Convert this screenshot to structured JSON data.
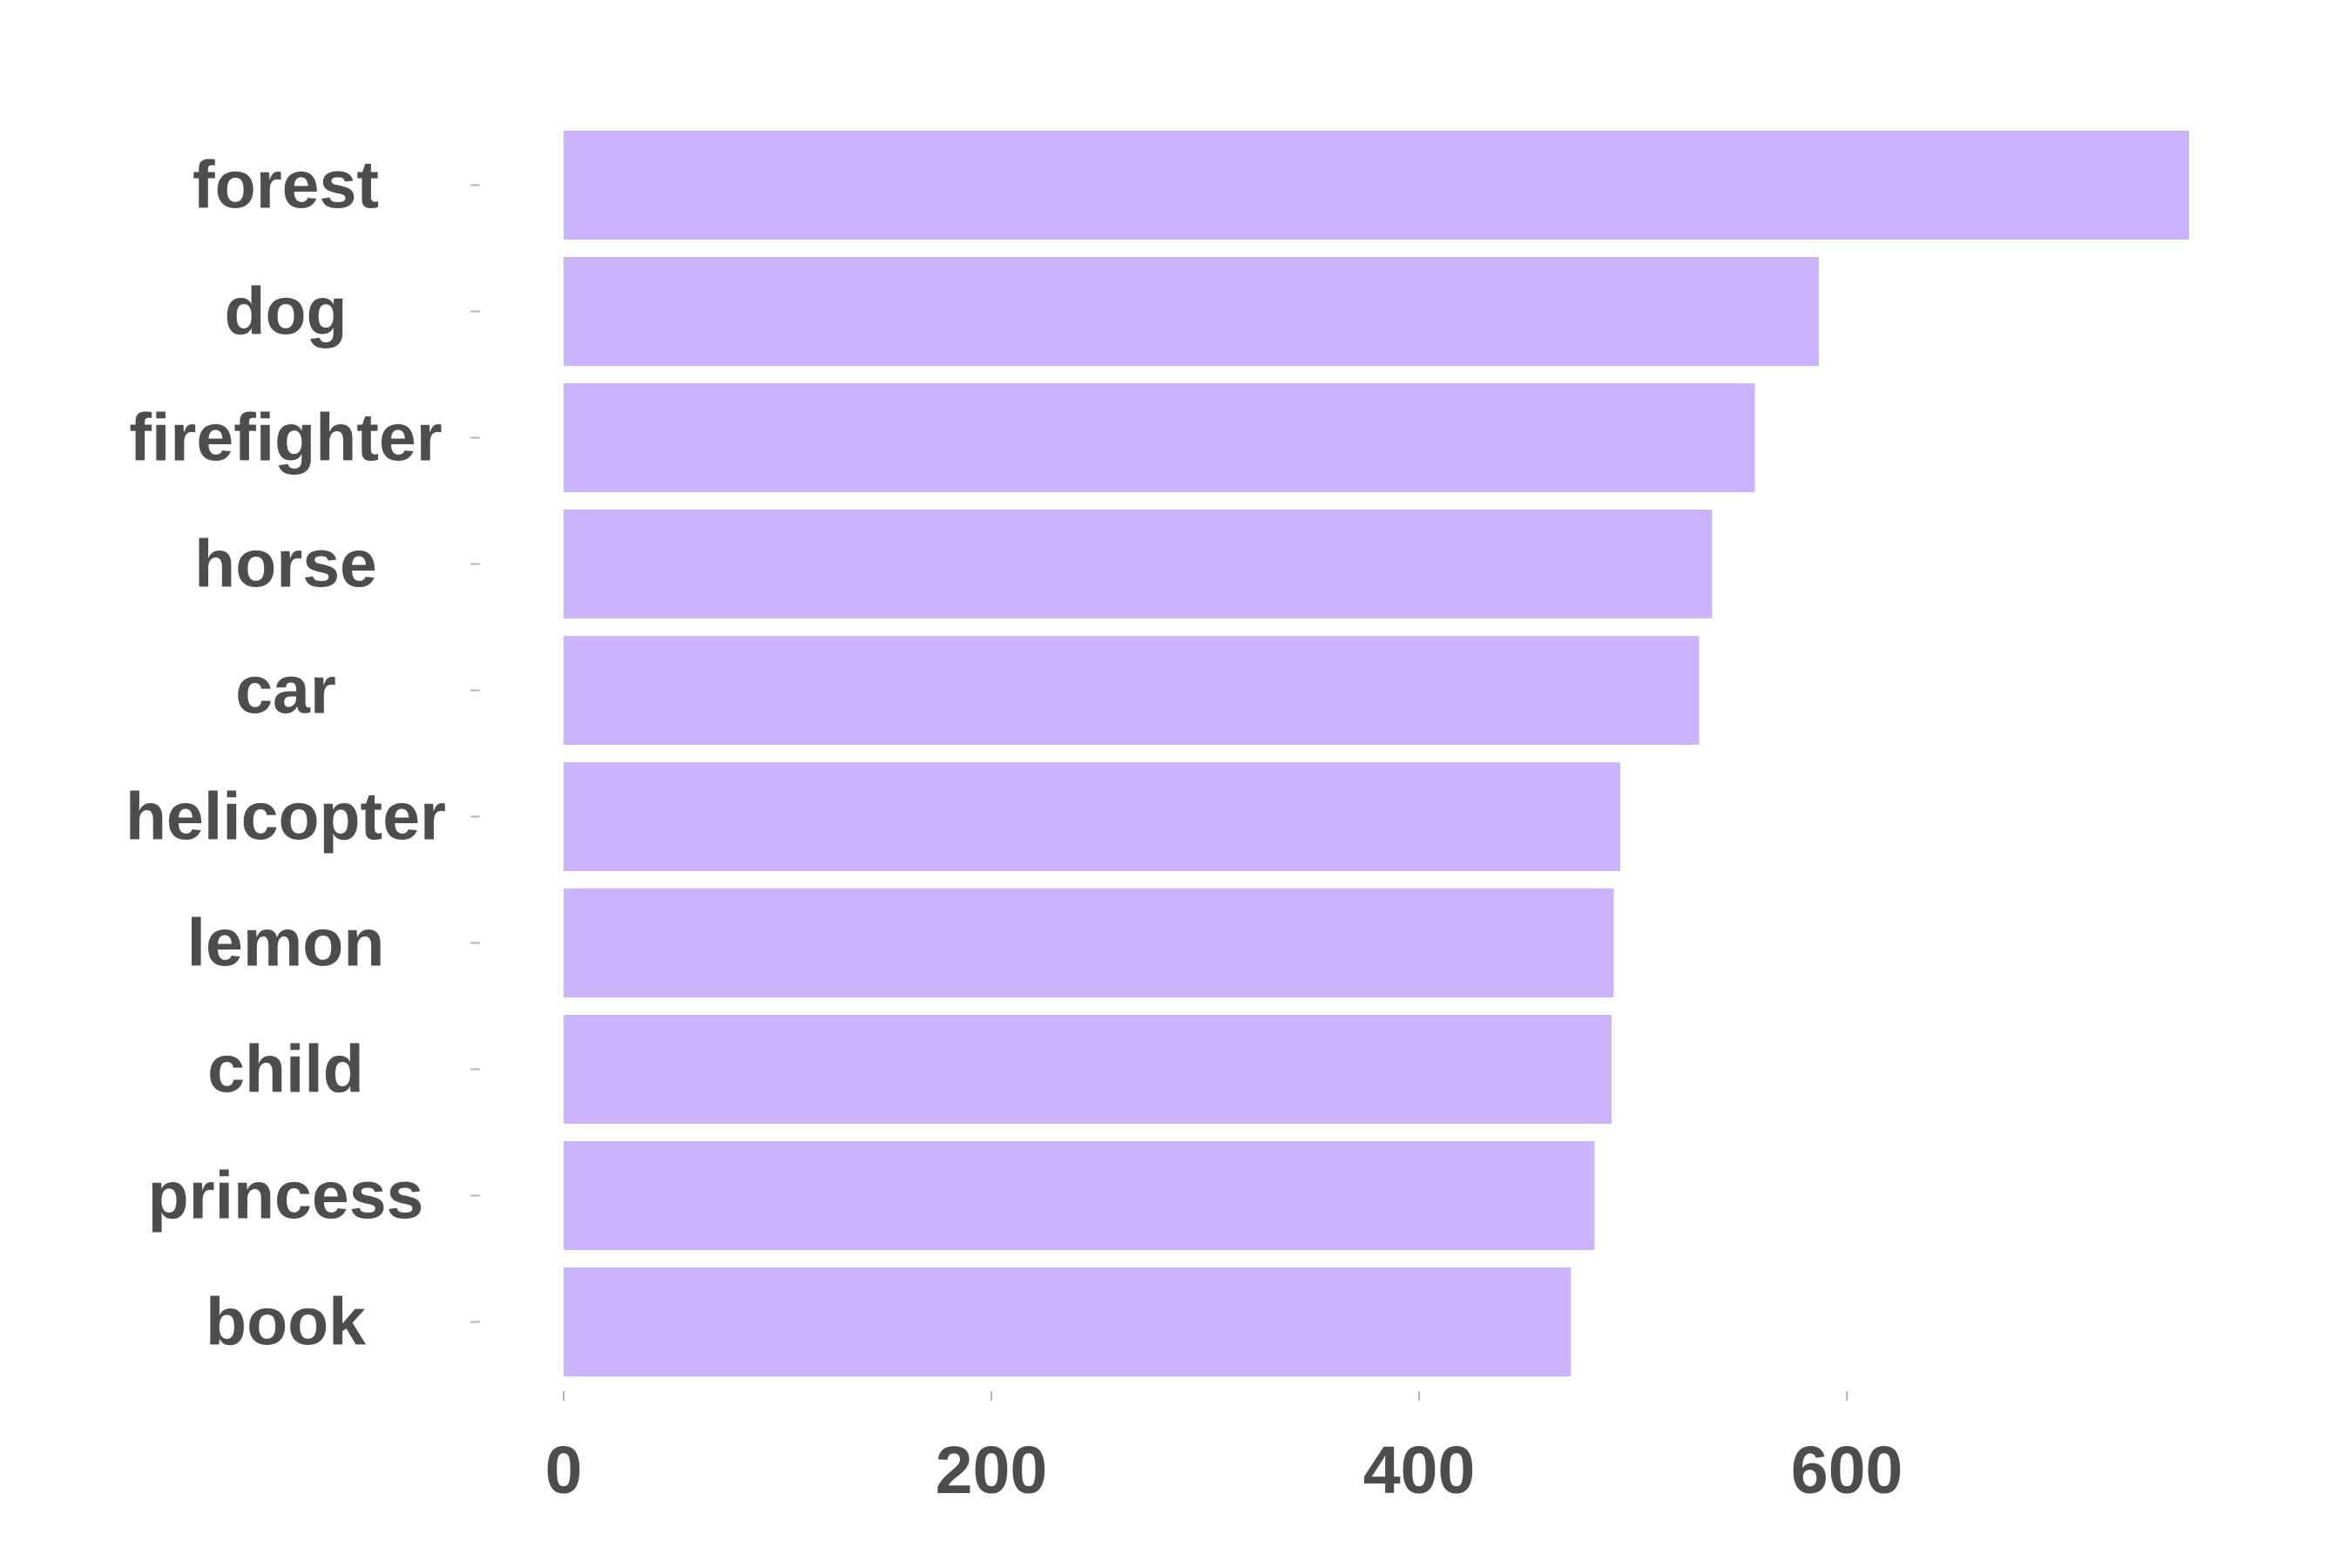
{
  "chart_data": {
    "type": "bar",
    "orientation": "horizontal",
    "categories": [
      "forest",
      "dog",
      "firefighter",
      "horse",
      "car",
      "helicopter",
      "lemon",
      "child",
      "princess",
      "book"
    ],
    "values": [
      760,
      587,
      557,
      537,
      531,
      494,
      491,
      490,
      482,
      471
    ],
    "title": "",
    "xlabel": "",
    "ylabel": "",
    "xlim": [
      0,
      760
    ],
    "xticks": [
      0,
      200,
      400,
      600
    ],
    "grid": false,
    "legend": "none",
    "bar_color": "#cbb4fd",
    "text_color": "#4d4d4d"
  }
}
